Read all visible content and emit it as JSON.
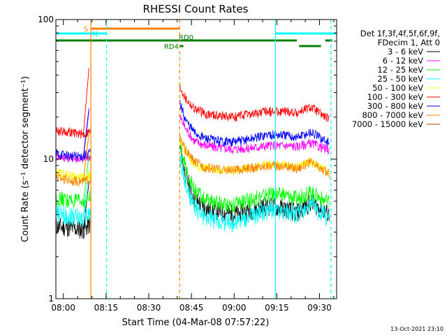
{
  "chart_data": {
    "type": "line",
    "title": "RHESSI Count Rates",
    "xlabel": "Start Time (04-Mar-08 07:57:22)",
    "ylabel": "Count Rate (s⁻¹ detector segment⁻¹)",
    "yscale": "log",
    "ylim": [
      1,
      100
    ],
    "xlim": [
      "07:57:22",
      "09:36:00"
    ],
    "x_ticks": [
      "08:00",
      "08:15",
      "08:30",
      "08:45",
      "09:00",
      "09:15",
      "09:30"
    ],
    "y_tick_labels": [
      "1",
      "10",
      "100"
    ],
    "legend_header": [
      "Det 1f,3f,4f,5f,6f,9f,",
      "FDecim 1, Att 0"
    ],
    "legend_placement": "right",
    "grid": false,
    "time_segments": [
      [
        "07:57:22",
        "08:09:40"
      ],
      [
        "08:40:50",
        "09:34:00"
      ]
    ],
    "series": [
      {
        "name": "3 - 6 keV",
        "color": "#000000",
        "values": [
          3.3,
          3.2,
          3.1,
          12.0,
          7.5,
          5.2,
          4.4,
          4.2,
          4.0,
          4.3,
          4.6,
          4.4,
          4.1,
          4.9,
          4.0
        ]
      },
      {
        "name": "6 - 12 keV",
        "color": "#ff00ff",
        "values": [
          10.5,
          10.2,
          10.0,
          20.0,
          16.5,
          13.5,
          12.5,
          12.0,
          11.8,
          12.0,
          12.5,
          12.5,
          12.3,
          13.0,
          11.5
        ]
      },
      {
        "name": "12 - 25 keV",
        "color": "#00ff00",
        "values": [
          5.2,
          5.0,
          4.9,
          13.0,
          8.5,
          6.0,
          5.0,
          4.8,
          4.7,
          5.1,
          5.6,
          5.5,
          5.2,
          5.8,
          4.8
        ]
      },
      {
        "name": "25 - 50 keV",
        "color": "#00ffff",
        "values": [
          4.0,
          3.9,
          3.8,
          10.0,
          6.5,
          4.5,
          3.8,
          3.6,
          3.5,
          3.9,
          4.3,
          4.2,
          4.0,
          4.6,
          3.8
        ]
      },
      {
        "name": "50 - 100 keV",
        "color": "#ffff00",
        "values": [
          8.0,
          7.5,
          7.3,
          14.0,
          11.0,
          9.2,
          8.6,
          8.4,
          8.3,
          8.7,
          9.2,
          9.0,
          8.8,
          9.6,
          8.0
        ]
      },
      {
        "name": "100 - 300 keV",
        "color": "#ff0000",
        "values": [
          16.0,
          15.5,
          15.0,
          33.0,
          27.0,
          23.0,
          21.0,
          20.5,
          20.0,
          21.0,
          22.0,
          22.0,
          21.5,
          23.5,
          19.0
        ]
      },
      {
        "name": "300 - 800 keV",
        "color": "#0000ff",
        "values": [
          11.0,
          10.5,
          10.5,
          25.0,
          19.0,
          15.5,
          14.0,
          13.5,
          13.3,
          14.0,
          15.0,
          14.8,
          14.3,
          15.5,
          13.0
        ]
      },
      {
        "name": "800 - 7000 keV",
        "color": "#ff8000",
        "values": [
          7.5,
          7.0,
          6.9,
          14.0,
          11.5,
          9.6,
          8.7,
          8.4,
          8.3,
          8.6,
          9.0,
          8.9,
          8.6,
          9.4,
          7.8
        ]
      },
      {
        "name": "7000 - 15000 keV",
        "color": "#a05000",
        "values": [
          null,
          null,
          null,
          null,
          null,
          null,
          null,
          null,
          null,
          null,
          null,
          null,
          null,
          null,
          null
        ]
      }
    ],
    "x": [
      "07:57:22",
      "08:03:00",
      "08:07:00",
      "08:41:00",
      "08:43:00",
      "08:46:00",
      "08:50:00",
      "08:55:00",
      "09:00:00",
      "09:06:00",
      "09:12:00",
      "09:18:00",
      "09:22:00",
      "09:27:00",
      "09:33:30"
    ],
    "state_bars": [
      {
        "label": "S",
        "color": "#ff8000",
        "start": "08:09:40",
        "end": "08:40:50"
      },
      {
        "label": "N",
        "color": "#00ffff",
        "start": "07:57:22",
        "end": "08:15:10"
      },
      {
        "label": "",
        "color": "#00ffff",
        "start": "09:14:30",
        "end": "09:35:50"
      },
      {
        "label": "RD0",
        "color": "#008000",
        "start": "07:57:22",
        "end": "09:22:00"
      },
      {
        "label": "",
        "color": "#008000",
        "start": "09:32:00",
        "end": "09:34:30"
      },
      {
        "label": "RD4",
        "color": "#008000",
        "start": "08:41:00",
        "end": "08:42:10"
      },
      {
        "label": "",
        "color": "#008000",
        "start": "09:22:50",
        "end": "09:30:30"
      }
    ],
    "vertical_markers": [
      {
        "time": "08:09:40",
        "color": "#ff8000",
        "style": "solid"
      },
      {
        "time": "08:15:10",
        "color": "#00ffff",
        "style": "dashed"
      },
      {
        "time": "08:40:50",
        "color": "#ff8000",
        "style": "dashed"
      },
      {
        "time": "09:14:30",
        "color": "#00ffff",
        "style": "solid"
      },
      {
        "time": "09:34:00",
        "color": "#00ffff",
        "style": "dashed"
      }
    ],
    "timestamp": "13-Oct-2021 23:10"
  }
}
